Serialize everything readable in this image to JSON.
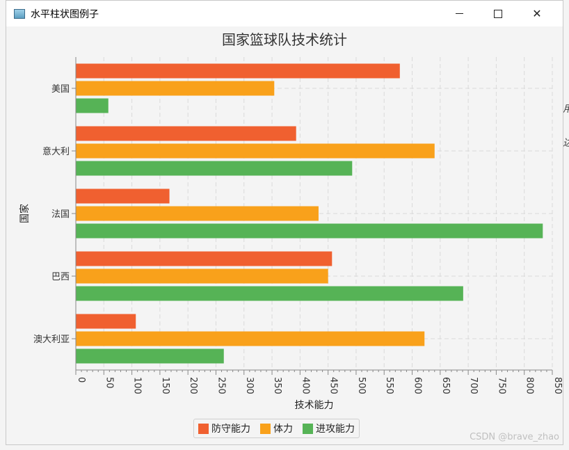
{
  "window": {
    "title": "水平柱状图例子"
  },
  "colors": {
    "defense": "#f06030",
    "stamina": "#f9a11b",
    "attack": "#56b356",
    "grid": "#dadada",
    "axis": "#888888"
  },
  "chart_data": {
    "type": "bar",
    "orientation": "horizontal",
    "title": "国家篮球队技术统计",
    "xlabel": "技术能力",
    "ylabel": "国家",
    "xlim": [
      0,
      850
    ],
    "x_major_ticks": [
      0,
      50,
      100,
      150,
      200,
      250,
      300,
      350,
      400,
      450,
      500,
      550,
      600,
      650,
      700,
      750,
      800,
      850
    ],
    "x_minor_step": 10,
    "grid": true,
    "legend_placement": "bottom-center",
    "categories": [
      "美国",
      "意大利",
      "法国",
      "巴西",
      "澳大利亚"
    ],
    "series": [
      {
        "name": "防守能力",
        "color": "#f06030",
        "values": [
          578,
          393,
          167,
          457,
          107
        ]
      },
      {
        "name": "体力",
        "color": "#f9a11b",
        "values": [
          354,
          640,
          433,
          450,
          622
        ]
      },
      {
        "name": "进攻能力",
        "color": "#56b356",
        "values": [
          58,
          493,
          833,
          691,
          264
        ]
      }
    ]
  },
  "watermark": "CSDN @brave_zhao"
}
